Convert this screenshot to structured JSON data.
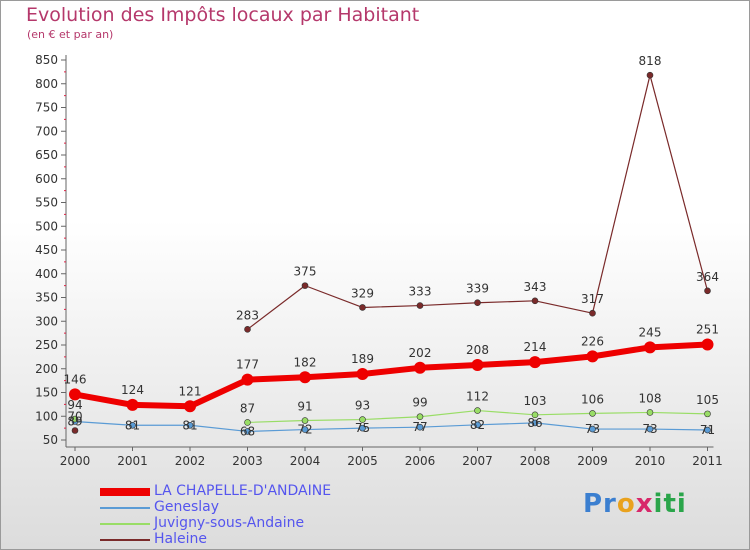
{
  "chart_data": {
    "type": "line",
    "title": "Evolution des Impôts locaux par Habitant",
    "subtitle": "(en € et par an)",
    "xlabel": "",
    "ylabel": "",
    "x": [
      "2000",
      "2001",
      "2002",
      "2003",
      "2004",
      "2005",
      "2006",
      "2007",
      "2008",
      "2009",
      "2010",
      "2011"
    ],
    "ylim": [
      50,
      850
    ],
    "yticks": [
      50,
      100,
      150,
      200,
      250,
      300,
      350,
      400,
      450,
      500,
      550,
      600,
      650,
      700,
      750,
      800,
      850
    ],
    "grid": false,
    "legend_position": "bottom-left",
    "series": [
      {
        "name": "LA CHAPELLE-D'ANDAINE",
        "color": "#ee0000",
        "values": [
          146,
          124,
          121,
          177,
          182,
          189,
          202,
          208,
          214,
          226,
          245,
          251
        ]
      },
      {
        "name": "Geneslay",
        "color": "#5a9bd5",
        "values": [
          89,
          81,
          81,
          68,
          72,
          75,
          77,
          82,
          86,
          73,
          73,
          71
        ]
      },
      {
        "name": "Juvigny-sous-Andaine",
        "color": "#99dd66",
        "values": [
          94,
          null,
          null,
          87,
          91,
          93,
          99,
          112,
          103,
          106,
          108,
          105
        ]
      },
      {
        "name": "Haleine",
        "color": "#7a2a2a",
        "values": [
          70,
          null,
          null,
          283,
          375,
          329,
          333,
          339,
          343,
          317,
          818,
          364
        ]
      }
    ]
  },
  "branding": {
    "logo_text": [
      "Pr",
      "o",
      "x",
      "i",
      "ti"
    ]
  }
}
